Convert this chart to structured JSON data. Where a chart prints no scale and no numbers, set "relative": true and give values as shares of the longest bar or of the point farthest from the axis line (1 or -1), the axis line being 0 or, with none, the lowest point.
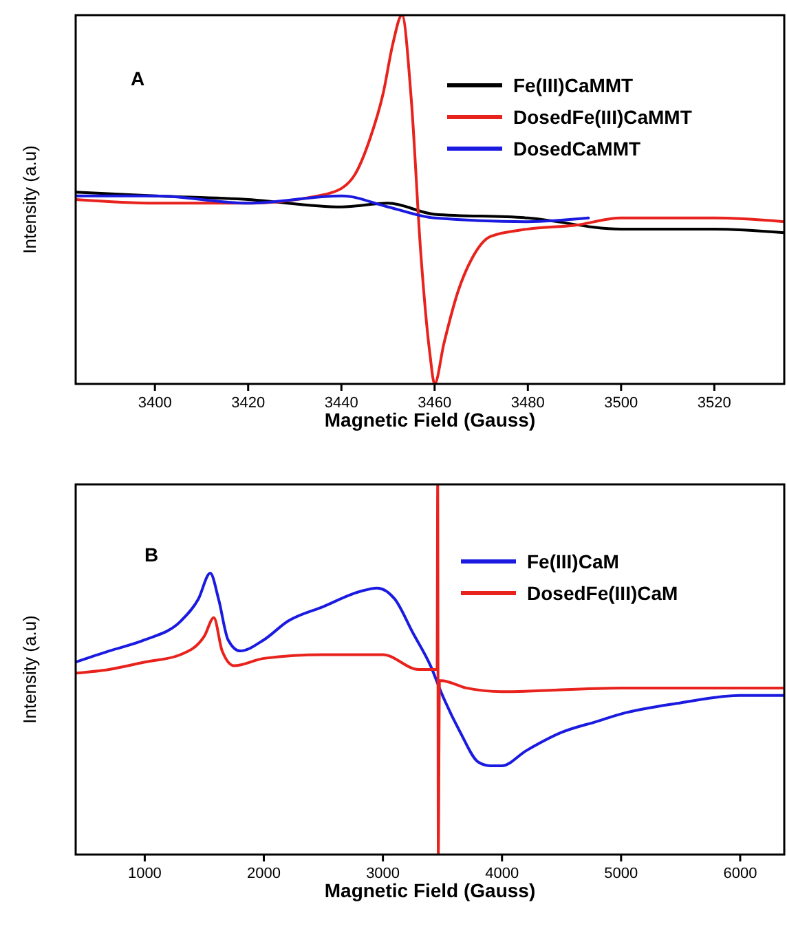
{
  "chart_data": [
    {
      "type": "line",
      "xlabel": "Magnetic Field (Gauss)",
      "ylabel": "Intensity (a.u)",
      "annotations": [
        "A"
      ],
      "relative": true,
      "legend": "top right",
      "xlim": [
        3383,
        3535
      ],
      "xticks": [
        3400,
        3420,
        3440,
        3460,
        3480,
        3500,
        3520
      ],
      "series": [
        {
          "name": "Fe(III)CaMMT",
          "color": "#000000",
          "x": [
            3383,
            3400,
            3420,
            3440,
            3450,
            3460,
            3480,
            3500,
            3520,
            3535
          ],
          "values": [
            0.52,
            0.51,
            0.5,
            0.48,
            0.49,
            0.46,
            0.45,
            0.42,
            0.42,
            0.41
          ]
        },
        {
          "name": "DosedFe(III)CaMMT",
          "color": "#e8221c",
          "x": [
            3383,
            3400,
            3420,
            3435,
            3440,
            3443,
            3446,
            3449,
            3451,
            3453,
            3455,
            3457,
            3459,
            3460,
            3462,
            3465,
            3468,
            3472,
            3480,
            3490,
            3500,
            3520,
            3535
          ],
          "values": [
            0.5,
            0.49,
            0.49,
            0.51,
            0.53,
            0.57,
            0.66,
            0.79,
            0.92,
            1,
            0.77,
            0.36,
            0.08,
            0,
            0.11,
            0.25,
            0.34,
            0.4,
            0.42,
            0.43,
            0.45,
            0.45,
            0.44
          ]
        },
        {
          "name": "DosedCaMMT",
          "color": "#1a1ae0",
          "x": [
            3383,
            3400,
            3420,
            3440,
            3450,
            3460,
            3480,
            3493
          ],
          "values": [
            0.51,
            0.51,
            0.49,
            0.51,
            0.48,
            0.45,
            0.44,
            0.45
          ]
        }
      ]
    },
    {
      "type": "line",
      "xlabel": "Magnetic Field (Gauss)",
      "ylabel": "Intensity (a.u)",
      "annotations": [
        "B"
      ],
      "relative": true,
      "legend": "top right",
      "xlim": [
        420,
        6370
      ],
      "xticks": [
        1000,
        2000,
        3000,
        4000,
        5000,
        6000
      ],
      "series": [
        {
          "name": "Fe(III)CaM",
          "color": "#1a1ae0",
          "x": [
            420,
            700,
            1000,
            1300,
            1450,
            1550,
            1620,
            1700,
            1800,
            2000,
            2200,
            2500,
            2800,
            2950,
            3100,
            3250,
            3400,
            3500,
            3650,
            3800,
            3900,
            4000,
            4200,
            4500,
            4800,
            5000,
            5500,
            6000,
            6370
          ],
          "values": [
            0.52,
            0.55,
            0.58,
            0.63,
            0.69,
            0.76,
            0.69,
            0.58,
            0.55,
            0.58,
            0.63,
            0.67,
            0.71,
            0.72,
            0.69,
            0.6,
            0.51,
            0.43,
            0.33,
            0.25,
            0.24,
            0.24,
            0.28,
            0.33,
            0.36,
            0.38,
            0.41,
            0.43,
            0.43
          ]
        },
        {
          "name": "DosedFe(III)CaM",
          "color": "#e8221c",
          "x": [
            420,
            700,
            1000,
            1300,
            1500,
            1580,
            1650,
            1750,
            2000,
            2500,
            3000,
            3300,
            3440,
            3455,
            3460,
            3465,
            3475,
            3490,
            3700,
            4000,
            5000,
            6000,
            6370
          ],
          "values": [
            0.49,
            0.5,
            0.52,
            0.54,
            0.59,
            0.64,
            0.55,
            0.51,
            0.53,
            0.54,
            0.54,
            0.5,
            0.5,
            0.5,
            1,
            0,
            0.47,
            0.47,
            0.45,
            0.44,
            0.45,
            0.45,
            0.45
          ]
        }
      ]
    }
  ]
}
